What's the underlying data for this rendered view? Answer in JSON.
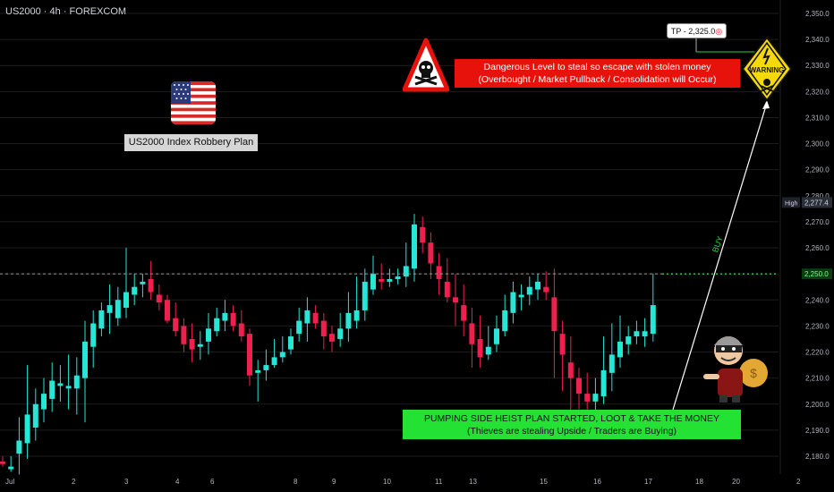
{
  "header": {
    "symbol_text": "US2000 · 4h · FOREXCOM"
  },
  "annotations": {
    "plan_label": "US2000 Index Robbery Plan",
    "danger_line1": "Dangerous Level to steal so escape with stolen money",
    "danger_line2": "(Overbought / Market Pullback / Consolidation will Occur)",
    "heist_line1": "PUMPING SIDE HEIST PLAN STARTED, LOOT & TAKE THE MONEY",
    "heist_line2": "(Thieves are stealing Upside / Traders are Buying)",
    "tp_label": "TP - 2,325.0",
    "buy_label": "BUY",
    "warning_label": "WARNING"
  },
  "price_badges": {
    "high_label": "High",
    "high_value": "2,277.4",
    "current_value": "2,250.0"
  },
  "colors": {
    "bull": "#26e6d6",
    "bear": "#f0204e",
    "background": "#000000",
    "grid": "#1c1c1c"
  },
  "chart_data": {
    "type": "candlestick",
    "title": "US2000 · 4h · FOREXCOM",
    "ylim": [
      2175,
      2355
    ],
    "y_ticks": [
      "2,180.0",
      "2,190.0",
      "2,200.0",
      "2,210.0",
      "2,220.0",
      "2,230.0",
      "2,240.0",
      "2,250.0",
      "2,260.0",
      "2,270.0",
      "2,280.0",
      "2,290.0",
      "2,300.0",
      "2,310.0",
      "2,320.0",
      "2,330.0",
      "2,340.0",
      "2,350.0"
    ],
    "x_ticks": [
      "Jul",
      "2",
      "3",
      "4",
      "6",
      "8",
      "9",
      "10",
      "11",
      "13",
      "15",
      "16",
      "17",
      "18",
      "20",
      "2"
    ],
    "bars": [
      [
        2178,
        2177,
        2180,
        2176
      ],
      [
        2175,
        2176,
        2180,
        2174
      ],
      [
        2181,
        2186,
        2195,
        2173
      ],
      [
        2185,
        2196,
        2215,
        2179
      ],
      [
        2191,
        2200,
        2206,
        2186
      ],
      [
        2198,
        2204,
        2210,
        2193
      ],
      [
        2202,
        2209,
        2216,
        2197
      ],
      [
        2207,
        2208,
        2215,
        2201
      ],
      [
        2206,
        2207,
        2219,
        2198
      ],
      [
        2206,
        2211,
        2218,
        2196
      ],
      [
        2210,
        2224,
        2232,
        2193
      ],
      [
        2222,
        2231,
        2236,
        2214
      ],
      [
        2229,
        2236,
        2239,
        2226
      ],
      [
        2235,
        2238,
        2246,
        2227
      ],
      [
        2233,
        2240,
        2245,
        2230
      ],
      [
        2237,
        2243,
        2260,
        2233
      ],
      [
        2242,
        2245,
        2250,
        2238
      ],
      [
        2246,
        2247,
        2250,
        2241
      ],
      [
        2248,
        2243,
        2255,
        2240
      ],
      [
        2242,
        2239,
        2246,
        2236
      ],
      [
        2240,
        2232,
        2242,
        2231
      ],
      [
        2233,
        2228,
        2239,
        2226
      ],
      [
        2230,
        2223,
        2233,
        2220
      ],
      [
        2225,
        2221,
        2231,
        2216
      ],
      [
        2222,
        2223,
        2228,
        2217
      ],
      [
        2224,
        2229,
        2235,
        2219
      ],
      [
        2228,
        2233,
        2237,
        2226
      ],
      [
        2232,
        2235,
        2240,
        2228
      ],
      [
        2235,
        2230,
        2238,
        2228
      ],
      [
        2231,
        2226,
        2236,
        2224
      ],
      [
        2227,
        2211,
        2229,
        2207
      ],
      [
        2212,
        2213,
        2217,
        2201
      ],
      [
        2213,
        2215,
        2221,
        2209
      ],
      [
        2215,
        2218,
        2225,
        2214
      ],
      [
        2218,
        2220,
        2226,
        2216
      ],
      [
        2221,
        2226,
        2229,
        2219
      ],
      [
        2227,
        2232,
        2237,
        2224
      ],
      [
        2231,
        2236,
        2241,
        2224
      ],
      [
        2235,
        2231,
        2238,
        2229
      ],
      [
        2232,
        2226,
        2235,
        2221
      ],
      [
        2227,
        2224,
        2230,
        2220
      ],
      [
        2225,
        2229,
        2235,
        2222
      ],
      [
        2229,
        2235,
        2243,
        2224
      ],
      [
        2232,
        2236,
        2249,
        2229
      ],
      [
        2236,
        2247,
        2252,
        2232
      ],
      [
        2244,
        2250,
        2257,
        2242
      ],
      [
        2248,
        2247,
        2254,
        2244
      ],
      [
        2247,
        2248,
        2252,
        2245
      ],
      [
        2248,
        2249,
        2252,
        2246
      ],
      [
        2249,
        2253,
        2262,
        2245
      ],
      [
        2252,
        2269,
        2273,
        2247
      ],
      [
        2268,
        2262,
        2272,
        2258
      ],
      [
        2262,
        2254,
        2266,
        2248
      ],
      [
        2253,
        2248,
        2258,
        2242
      ],
      [
        2247,
        2241,
        2256,
        2239
      ],
      [
        2241,
        2239,
        2250,
        2230
      ],
      [
        2238,
        2232,
        2246,
        2226
      ],
      [
        2231,
        2223,
        2237,
        2214
      ],
      [
        2225,
        2218,
        2234,
        2214
      ],
      [
        2219,
        2222,
        2230,
        2217
      ],
      [
        2223,
        2229,
        2234,
        2220
      ],
      [
        2228,
        2236,
        2242,
        2226
      ],
      [
        2235,
        2243,
        2247,
        2231
      ],
      [
        2241,
        2242,
        2246,
        2236
      ],
      [
        2242,
        2245,
        2249,
        2238
      ],
      [
        2244,
        2247,
        2250,
        2240
      ],
      [
        2245,
        2243,
        2251,
        2240
      ],
      [
        2241,
        2228,
        2252,
        2210
      ],
      [
        2227,
        2219,
        2232,
        2205
      ],
      [
        2216,
        2210,
        2226,
        2194
      ],
      [
        2210,
        2204,
        2214,
        2198
      ],
      [
        2204,
        2201,
        2212,
        2196
      ],
      [
        2201,
        2204,
        2210,
        2196
      ],
      [
        2203,
        2213,
        2226,
        2200
      ],
      [
        2212,
        2219,
        2231,
        2205
      ],
      [
        2218,
        2224,
        2234,
        2214
      ],
      [
        2223,
        2226,
        2230,
        2219
      ],
      [
        2226,
        2228,
        2232,
        2223
      ],
      [
        2226,
        2228,
        2233,
        2222
      ],
      [
        2227,
        2238,
        2250,
        2224
      ]
    ],
    "horizontal_line": 2250,
    "take_profit": 2325.0,
    "high": 2277.4
  }
}
